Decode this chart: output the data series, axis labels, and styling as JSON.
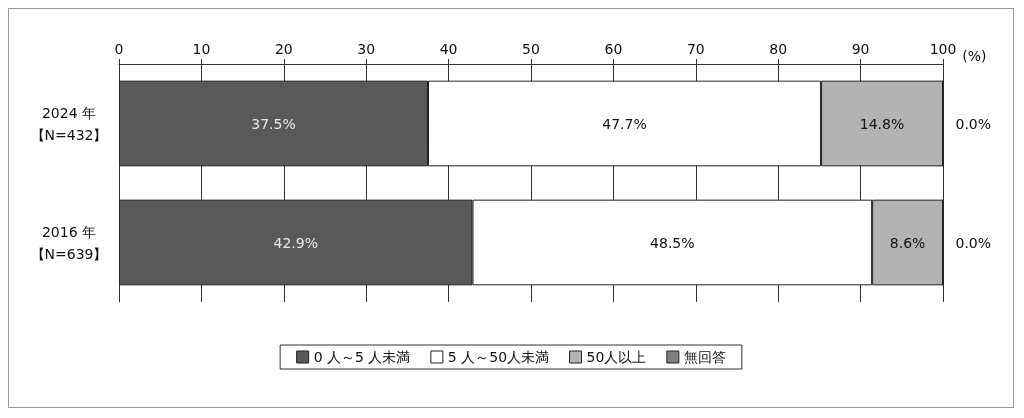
{
  "chart_data": {
    "type": "bar",
    "orientation": "horizontal",
    "stacked": true,
    "xlabel": "(%)",
    "categories": [
      "2024 年【N=432】",
      "2016 年【N=639】"
    ],
    "xlim": [
      0,
      100
    ],
    "xticks": [
      0,
      10,
      20,
      30,
      40,
      50,
      60,
      70,
      80,
      90,
      100
    ],
    "grid": "x",
    "legend": "bottom",
    "series": [
      {
        "name": "0 人～5 人未満",
        "color": "#595959",
        "values": [
          37.5,
          42.9
        ],
        "value_labels": [
          "37.5%",
          "42.9%"
        ]
      },
      {
        "name": "5 人～50人未満",
        "color": "#ffffff",
        "values": [
          47.7,
          48.5
        ],
        "value_labels": [
          "47.7%",
          "48.5%"
        ]
      },
      {
        "name": "50人以上",
        "color": "#b3b3b3",
        "values": [
          14.8,
          8.6
        ],
        "value_labels": [
          "14.8%",
          "8.6%"
        ]
      },
      {
        "name": "無回答",
        "color": "#808080",
        "values": [
          0.0,
          0.0
        ],
        "value_labels": [
          "0.0%",
          "0.0%"
        ]
      }
    ]
  }
}
